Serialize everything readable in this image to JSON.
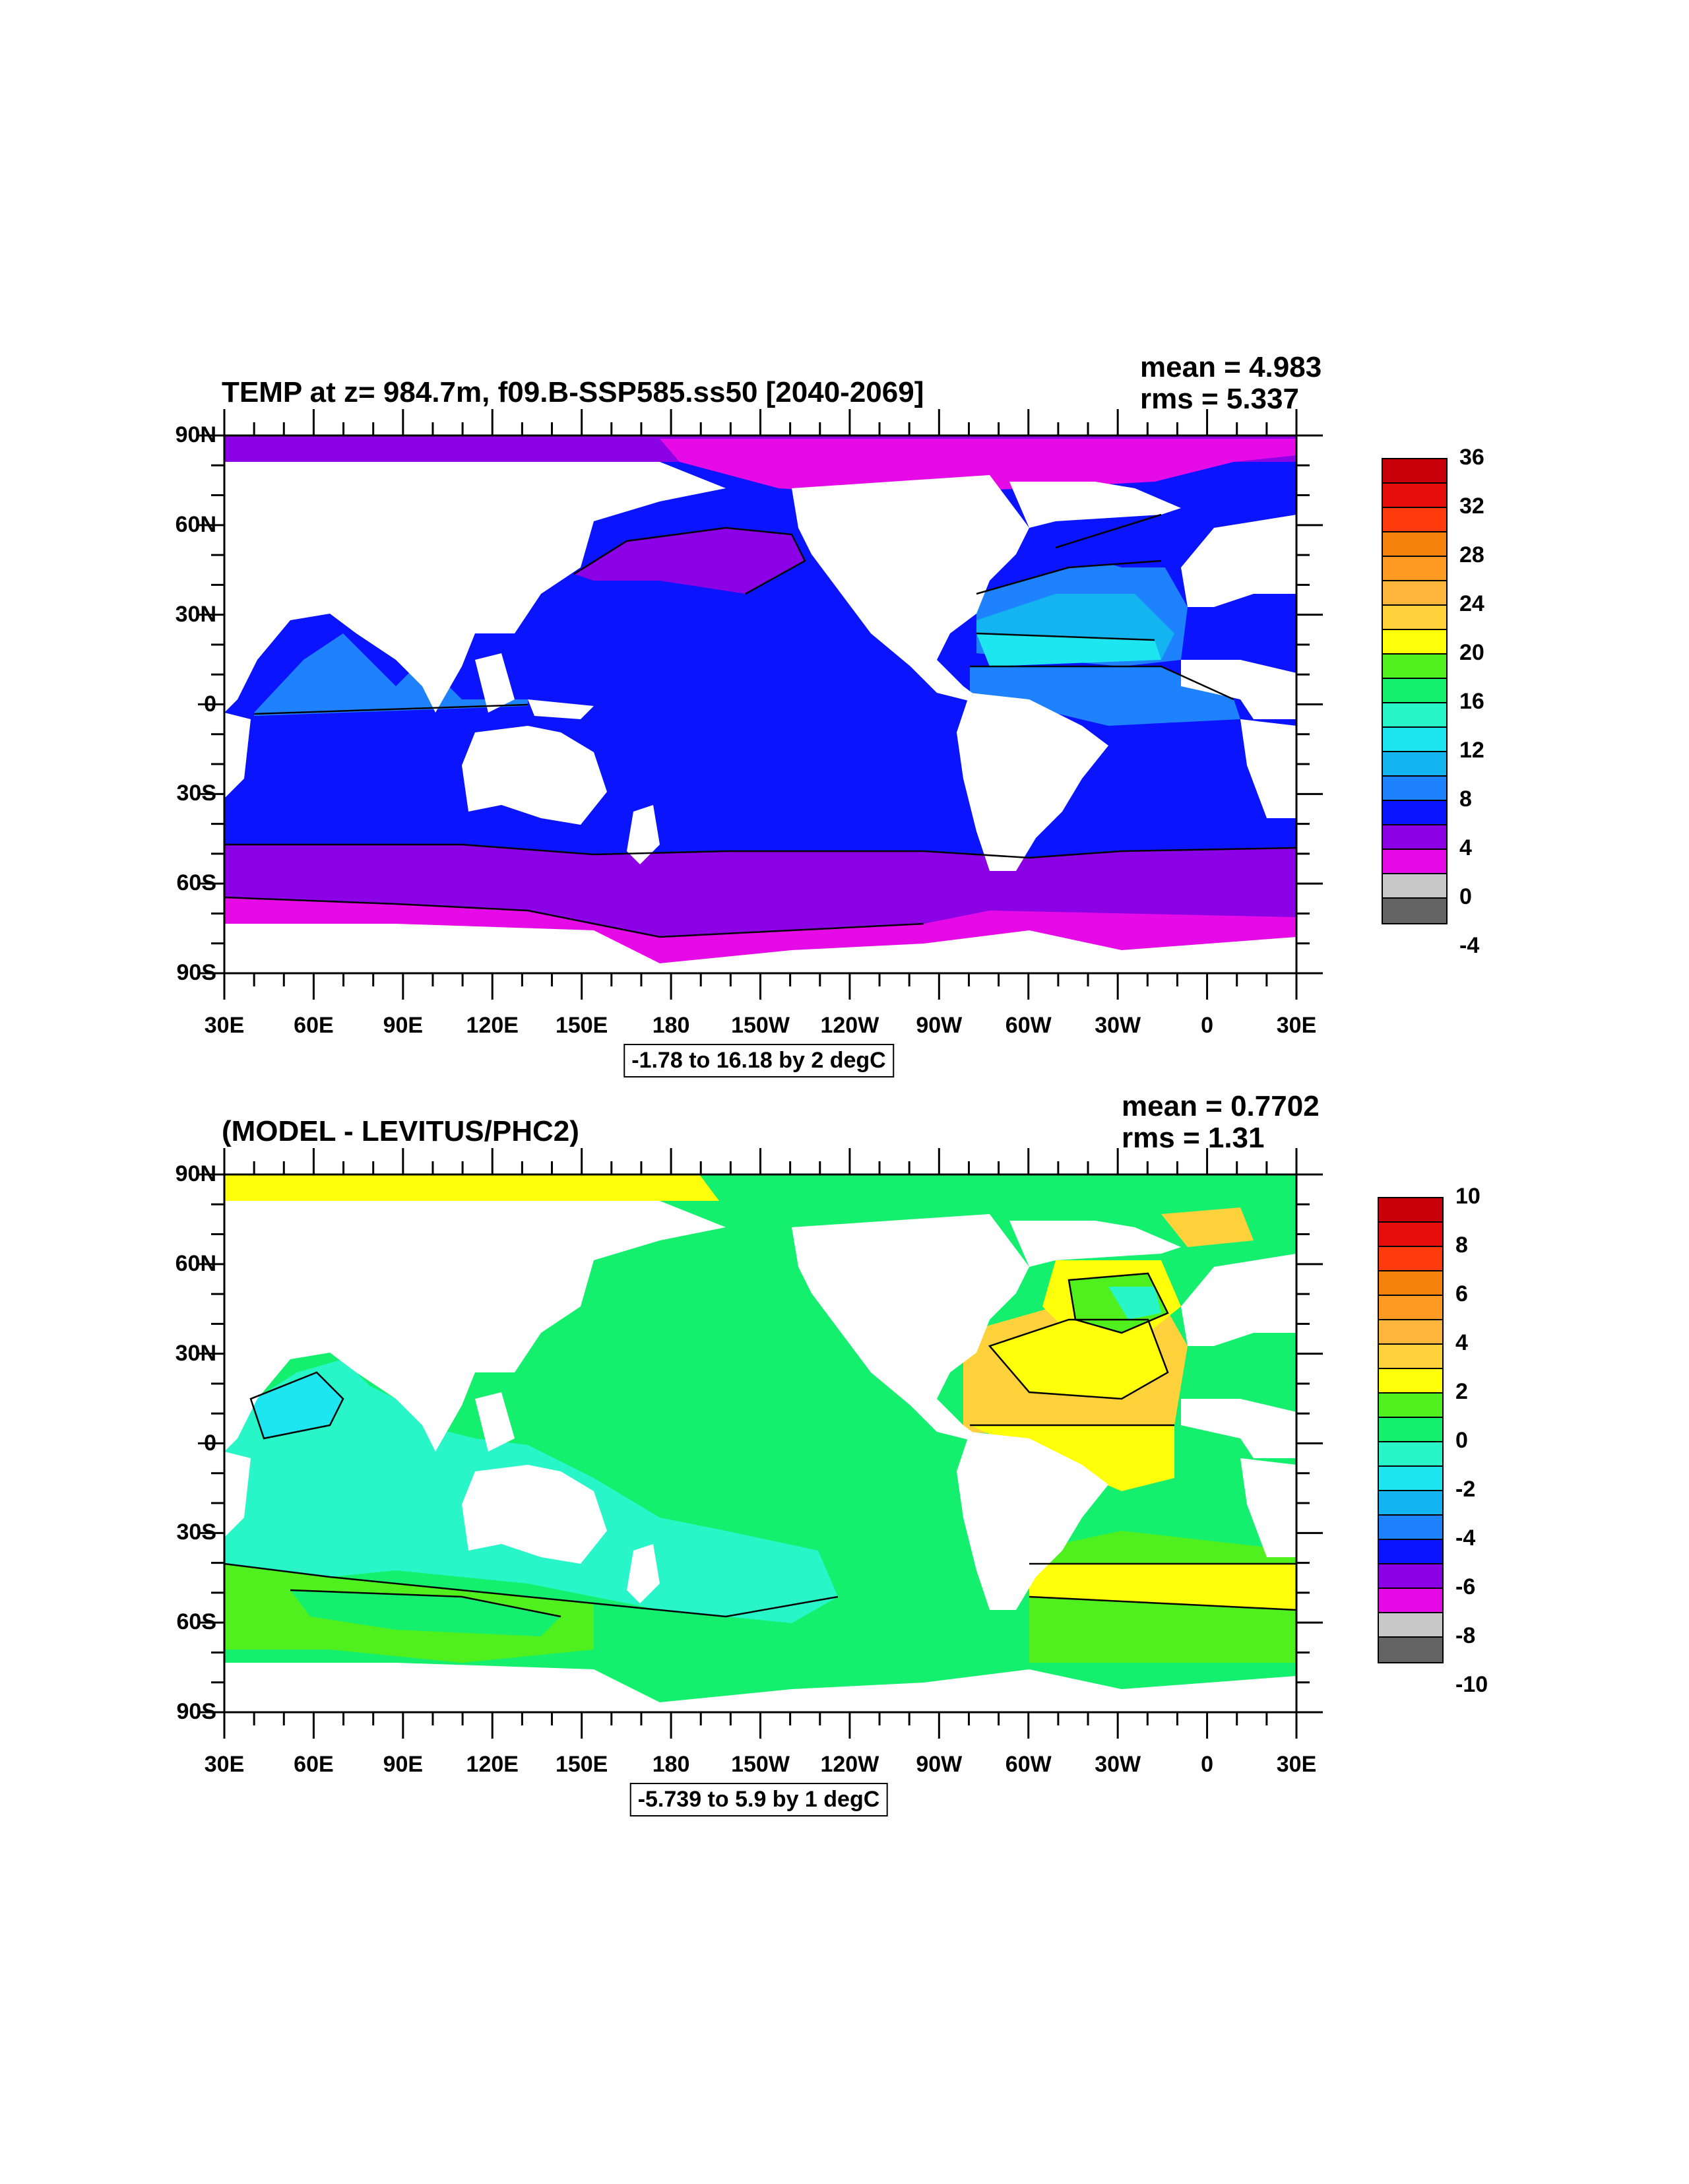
{
  "panels": [
    {
      "title": "TEMP at z= 984.7m, f09.B-SSP585.ss50 [2040-2069]",
      "mean": "mean = 4.983",
      "rms": "rms = 5.337",
      "contour_info": "-1.78 to 16.18 by 2 degC",
      "lat_labels": [
        "90N",
        "60N",
        "30N",
        "0",
        "30S",
        "60S",
        "90S"
      ],
      "lon_labels": [
        "30E",
        "60E",
        "90E",
        "120E",
        "150E",
        "180",
        "150W",
        "120W",
        "90W",
        "60W",
        "30W",
        "0",
        "30E"
      ],
      "colorbar": {
        "labels": [
          "36",
          "32",
          "28",
          "24",
          "20",
          "16",
          "12",
          "8",
          "4",
          "0",
          "-4"
        ],
        "colors": [
          "#c8000a",
          "#e80d0d",
          "#ff3a0d",
          "#f5820d",
          "#ff9a23",
          "#ffb43c",
          "#ffd23c",
          "#ffff0a",
          "#50f01e",
          "#14f06e",
          "#28f5c8",
          "#1ee6f0",
          "#14b4f0",
          "#1e82ff",
          "#0a14ff",
          "#8c00e6",
          "#e60ae6",
          "#c8c8c8",
          "#646464"
        ]
      }
    },
    {
      "title": "(MODEL - LEVITUS/PHC2)",
      "mean": "mean = 0.7702",
      "rms": "rms = 1.31",
      "contour_info": "-5.739 to 5.9 by 1 degC",
      "lat_labels": [
        "90N",
        "60N",
        "30N",
        "0",
        "30S",
        "60S",
        "90S"
      ],
      "lon_labels": [
        "30E",
        "60E",
        "90E",
        "120E",
        "150E",
        "180",
        "150W",
        "120W",
        "90W",
        "60W",
        "30W",
        "0",
        "30E"
      ],
      "colorbar": {
        "labels": [
          "10",
          "8",
          "6",
          "4",
          "2",
          "0",
          "-2",
          "-4",
          "-6",
          "-8",
          "-10"
        ],
        "colors": [
          "#c8000a",
          "#e80d0d",
          "#ff3a0d",
          "#f5820d",
          "#ff9a23",
          "#ffb43c",
          "#ffd23c",
          "#ffff0a",
          "#50f01e",
          "#14f06e",
          "#28f5c8",
          "#1ee6f0",
          "#14b4f0",
          "#1e82ff",
          "#0a14ff",
          "#8c00e6",
          "#e60ae6",
          "#c8c8c8",
          "#646464"
        ]
      }
    }
  ]
}
